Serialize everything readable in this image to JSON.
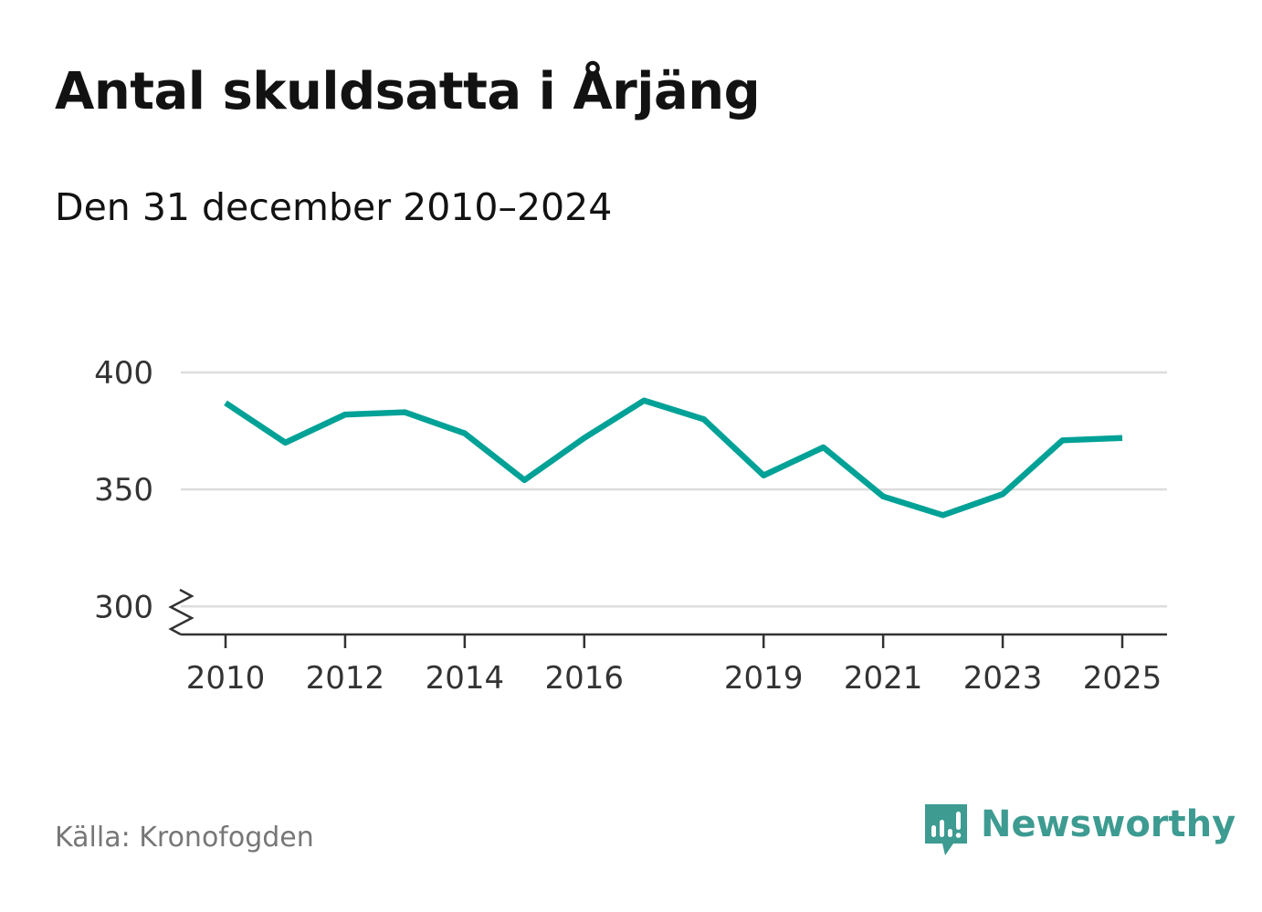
{
  "title": "Antal skuldsatta i Årjäng",
  "subtitle": "Den 31 december 2010–2024",
  "source": "Källa: Kronofogden",
  "brand": {
    "name": "Newsworthy",
    "color": "#3d9b91",
    "icon": "newsworthy-logo-icon"
  },
  "chart_data": {
    "type": "line",
    "title": "Antal skuldsatta i Årjäng",
    "subtitle": "Den 31 december 2010–2024",
    "xlabel": "",
    "ylabel": "",
    "x": [
      2010,
      2011,
      2012,
      2013,
      2014,
      2015,
      2016,
      2017,
      2018,
      2019,
      2020,
      2021,
      2022,
      2023,
      2024,
      2025
    ],
    "series": [
      {
        "values": [
          387,
          370,
          382,
          383,
          374,
          354,
          372,
          388,
          380,
          356,
          368,
          347,
          339,
          348,
          371,
          372
        ]
      }
    ],
    "xticks": [
      "2010",
      "2012",
      "2014",
      "2016",
      "2019",
      "2021",
      "2023",
      "2025"
    ],
    "yticks": [
      "300",
      "350",
      "400"
    ],
    "ylim": [
      288,
      400
    ],
    "axis_break": true,
    "grid": true,
    "line_color": "#00a196"
  }
}
